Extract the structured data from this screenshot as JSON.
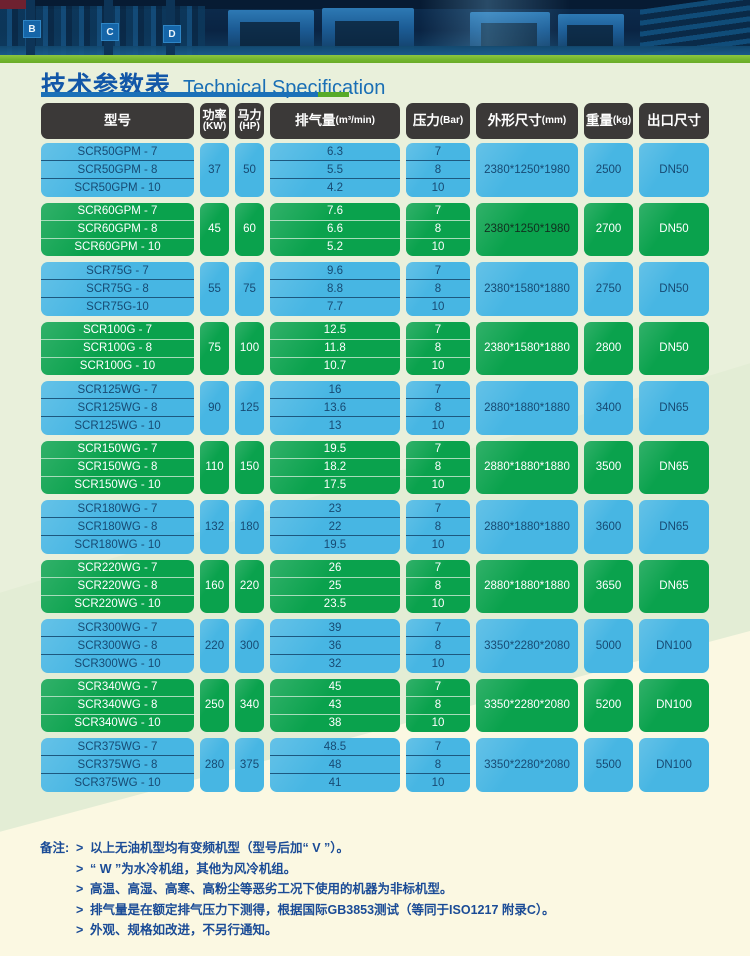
{
  "banner": {
    "pillar_labels": [
      "B",
      "C",
      "D"
    ]
  },
  "title": {
    "zh": "技术参数表",
    "en": "Technical Specification"
  },
  "table": {
    "headers": {
      "model": "型号",
      "power": "功率",
      "power_unit": "(KW)",
      "hp": "马力",
      "hp_unit": "(HP)",
      "displacement": "排气量",
      "displacement_unit": "(m³/min)",
      "pressure": "压力",
      "pressure_unit": "(Bar)",
      "dimensions": "外形尺寸",
      "dimensions_unit": "(mm)",
      "weight": "重量",
      "weight_unit": "(kg)",
      "outlet": "出口尺寸"
    },
    "groups": [
      {
        "models": [
          "SCR50GPM - 7",
          "SCR50GPM - 8",
          "SCR50GPM - 10"
        ],
        "power": "37",
        "hp": "50",
        "displacement": [
          "6.3",
          "5.5",
          "4.2"
        ],
        "pressure": [
          "7",
          "8",
          "10"
        ],
        "dimensions": "2380*1250*1980",
        "weight": "2500",
        "outlet": "DN50",
        "color": "blue"
      },
      {
        "models": [
          "SCR60GPM - 7",
          "SCR60GPM - 8",
          "SCR60GPM - 10"
        ],
        "power": "45",
        "hp": "60",
        "displacement": [
          "7.6",
          "6.6",
          "5.2"
        ],
        "pressure": [
          "7",
          "8",
          "10"
        ],
        "dimensions": "2380*1250*1980",
        "weight": "2700",
        "outlet": "DN50",
        "color": "green",
        "dimensions_dark": true
      },
      {
        "models": [
          "SCR75G - 7",
          "SCR75G - 8",
          "SCR75G-10"
        ],
        "power": "55",
        "hp": "75",
        "displacement": [
          "9.6",
          "8.8",
          "7.7"
        ],
        "pressure": [
          "7",
          "8",
          "10"
        ],
        "dimensions": "2380*1580*1880",
        "weight": "2750",
        "outlet": "DN50",
        "color": "blue"
      },
      {
        "models": [
          "SCR100G - 7",
          "SCR100G - 8",
          "SCR100G - 10"
        ],
        "power": "75",
        "hp": "100",
        "displacement": [
          "12.5",
          "11.8",
          "10.7"
        ],
        "pressure": [
          "7",
          "8",
          "10"
        ],
        "dimensions": "2380*1580*1880",
        "weight": "2800",
        "outlet": "DN50",
        "color": "green"
      },
      {
        "models": [
          "SCR125WG - 7",
          "SCR125WG - 8",
          "SCR125WG - 10"
        ],
        "power": "90",
        "hp": "125",
        "displacement": [
          "16",
          "13.6",
          "13"
        ],
        "pressure": [
          "7",
          "8",
          "10"
        ],
        "dimensions": "2880*1880*1880",
        "weight": "3400",
        "outlet": "DN65",
        "color": "blue"
      },
      {
        "models": [
          "SCR150WG - 7",
          "SCR150WG - 8",
          "SCR150WG - 10"
        ],
        "power": "110",
        "hp": "150",
        "displacement": [
          "19.5",
          "18.2",
          "17.5"
        ],
        "pressure": [
          "7",
          "8",
          "10"
        ],
        "dimensions": "2880*1880*1880",
        "weight": "3500",
        "outlet": "DN65",
        "color": "green"
      },
      {
        "models": [
          "SCR180WG - 7",
          "SCR180WG - 8",
          "SCR180WG - 10"
        ],
        "power": "132",
        "hp": "180",
        "displacement": [
          "23",
          "22",
          "19.5"
        ],
        "pressure": [
          "7",
          "8",
          "10"
        ],
        "dimensions": "2880*1880*1880",
        "weight": "3600",
        "outlet": "DN65",
        "color": "blue"
      },
      {
        "models": [
          "SCR220WG - 7",
          "SCR220WG - 8",
          "SCR220WG - 10"
        ],
        "power": "160",
        "hp": "220",
        "displacement": [
          "26",
          "25",
          "23.5"
        ],
        "pressure": [
          "7",
          "8",
          "10"
        ],
        "dimensions": "2880*1880*1880",
        "weight": "3650",
        "outlet": "DN65",
        "color": "green"
      },
      {
        "models": [
          "SCR300WG - 7",
          "SCR300WG - 8",
          "SCR300WG - 10"
        ],
        "power": "220",
        "hp": "300",
        "displacement": [
          "39",
          "36",
          "32"
        ],
        "pressure": [
          "7",
          "8",
          "10"
        ],
        "dimensions": "3350*2280*2080",
        "weight": "5000",
        "outlet": "DN100",
        "color": "blue"
      },
      {
        "models": [
          "SCR340WG - 7",
          "SCR340WG - 8",
          "SCR340WG - 10"
        ],
        "power": "250",
        "hp": "340",
        "displacement": [
          "45",
          "43",
          "38"
        ],
        "pressure": [
          "7",
          "8",
          "10"
        ],
        "dimensions": "3350*2280*2080",
        "weight": "5200",
        "outlet": "DN100",
        "color": "green"
      },
      {
        "models": [
          "SCR375WG - 7",
          "SCR375WG - 8",
          "SCR375WG - 10"
        ],
        "power": "280",
        "hp": "375",
        "displacement": [
          "48.5",
          "48",
          "41"
        ],
        "pressure": [
          "7",
          "8",
          "10"
        ],
        "dimensions": "3350*2280*2080",
        "weight": "5500",
        "outlet": "DN100",
        "color": "blue"
      }
    ]
  },
  "notes": {
    "label": "备注:",
    "bullet": ">",
    "items": [
      "以上无油机型均有变频机型（型号后加“ V ”）。",
      "“ W ”为水冷机组，其他为风冷机组。",
      "高温、高湿、高寒、高粉尘等恶劣工况下使用的机器为非标机型。",
      "排气量是在额定排气压力下测得，根据国际GB3853测试（等同于ISO1217 附录C）。",
      "外观、规格如改进，不另行通知。"
    ]
  },
  "colors": {
    "blue_cell": "#47b6e3",
    "green_cell": "#0aa24d",
    "header_bg": "#3b3938",
    "blue_cell_text": "#174a73",
    "green_cell_text": "#ffffff",
    "title_blue": "#1257a8",
    "title_en_blue": "#1a6fb5",
    "stripe_green": "#72b62e",
    "underline_blue": "#1b71b8",
    "underline_green": "#57aa28",
    "notes_text": "#1a4b96",
    "background_green": "#e9f0db",
    "background_yellow": "#fbf8e2"
  }
}
